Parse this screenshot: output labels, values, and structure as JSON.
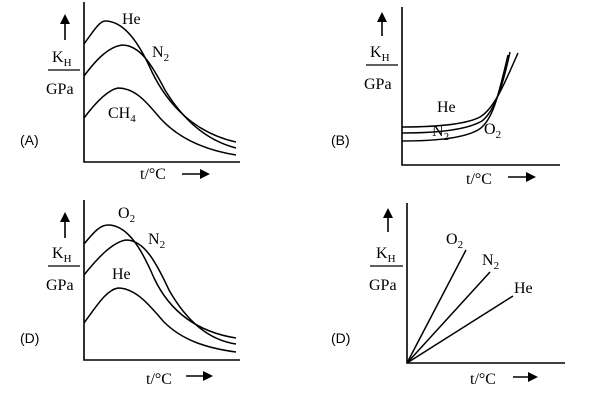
{
  "panels": [
    {
      "option": "(A)",
      "ylabel_top": "K",
      "ylabel_sub": "H",
      "ylabel_bottom": "GPa",
      "xlabel": "t/°C",
      "curves": [
        {
          "gas": "He",
          "sub": ""
        },
        {
          "gas": "N",
          "sub": "2"
        },
        {
          "gas": "CH",
          "sub": "4"
        }
      ]
    },
    {
      "option": "(B)",
      "ylabel_top": "K",
      "ylabel_sub": "H",
      "ylabel_bottom": "GPa",
      "xlabel": "t/°C",
      "curves": [
        {
          "gas": "He",
          "sub": ""
        },
        {
          "gas": "N",
          "sub": "2"
        },
        {
          "gas": "O",
          "sub": "2"
        }
      ]
    },
    {
      "option": "(D)",
      "ylabel_top": "K",
      "ylabel_sub": "H",
      "ylabel_bottom": "GPa",
      "xlabel": "t/°C",
      "curves": [
        {
          "gas": "O",
          "sub": "2"
        },
        {
          "gas": "N",
          "sub": "2"
        },
        {
          "gas": "He",
          "sub": ""
        }
      ]
    },
    {
      "option": "(D)",
      "ylabel_top": "K",
      "ylabel_sub": "H",
      "ylabel_bottom": "GPa",
      "xlabel": "t/°C",
      "curves": [
        {
          "gas": "O",
          "sub": "2"
        },
        {
          "gas": "N",
          "sub": "2"
        },
        {
          "gas": "He",
          "sub": ""
        }
      ]
    }
  ]
}
